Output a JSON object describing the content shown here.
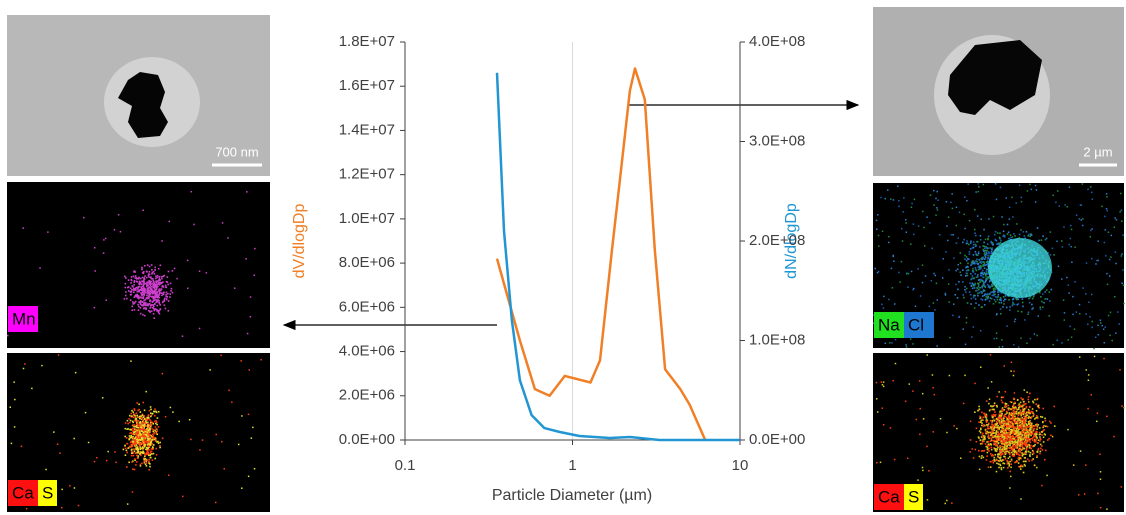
{
  "chart_data": {
    "type": "line",
    "x_label": "Particle Diameter  (µm)",
    "y_label": "dV/dlogDp",
    "y2_label": "dN/dlogDp",
    "xlim": [
      0.1,
      10
    ],
    "xticks": [
      0.1,
      1,
      10
    ],
    "xscale": "log",
    "grid": "x",
    "ylim": [
      0,
      18000000
    ],
    "yticks": [
      {
        "value": 0,
        "label": "0.0E+00"
      },
      {
        "value": 2000000,
        "label": "2.0E+06"
      },
      {
        "value": 4000000,
        "label": "4.0E+06"
      },
      {
        "value": 6000000,
        "label": "6.0E+06"
      },
      {
        "value": 8000000,
        "label": "8.0E+06"
      },
      {
        "value": 10000000,
        "label": "1.0E+07"
      },
      {
        "value": 12000000,
        "label": "1.2E+07"
      },
      {
        "value": 14000000,
        "label": "1.4E+07"
      },
      {
        "value": 16000000,
        "label": "1.6E+07"
      },
      {
        "value": 18000000,
        "label": "1.8E+07"
      }
    ],
    "y2lim": [
      0,
      400000000
    ],
    "y2ticks": [
      {
        "value": 0,
        "label": "0.0E+00"
      },
      {
        "value": 100000000,
        "label": "1.0E+08"
      },
      {
        "value": 200000000,
        "label": "2.0E+08"
      },
      {
        "value": 300000000,
        "label": "3.0E+08"
      },
      {
        "value": 400000000,
        "label": "4.0E+08"
      }
    ],
    "series": [
      {
        "color": "#f07f26",
        "axis": "y",
        "x": [
          0.354,
          0.485,
          0.596,
          0.73,
          0.9,
          1.28,
          1.46,
          1.72,
          1.92,
          2.2,
          2.36,
          2.7,
          3.1,
          3.57,
          4.4,
          5.0,
          6.2
        ],
        "values": [
          8200000,
          4500000,
          2300000,
          2000000,
          2900000,
          2600000,
          3600000,
          8600000,
          11800000,
          15800000,
          16800000,
          15400000,
          8600000,
          3200000,
          2300000,
          1600000,
          0
        ]
      },
      {
        "color": "#2196d3",
        "axis": "y2",
        "x": [
          0.354,
          0.39,
          0.435,
          0.485,
          0.57,
          0.68,
          0.84,
          1.1,
          1.67,
          2.2,
          3.3,
          10
        ],
        "values": [
          369000000,
          210000000,
          120000000,
          60000000,
          25000000,
          12000000,
          8000000,
          4000000,
          2000000,
          3000000,
          0,
          0
        ]
      }
    ]
  },
  "panels": {
    "left": {
      "scale_bar": "700 nm",
      "map1": [
        "Mn"
      ],
      "map2": [
        "Ca",
        "S"
      ]
    },
    "right": {
      "scale_bar": "2 µm",
      "map1": [
        "Na",
        "Cl"
      ],
      "map2": [
        "Ca",
        "S"
      ]
    }
  }
}
